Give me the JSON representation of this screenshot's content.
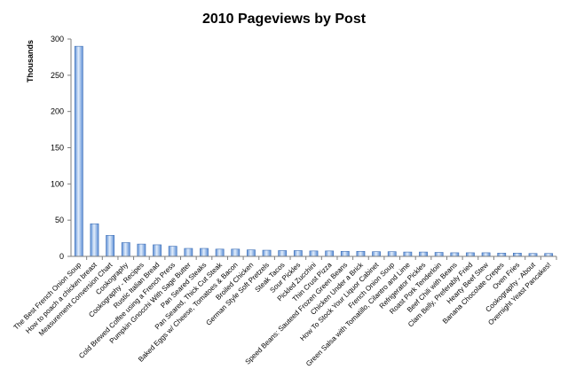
{
  "chart_data": {
    "type": "bar",
    "title": "2010 Pageviews by Post",
    "xlabel": "",
    "ylabel": "Thousands",
    "ylim": [
      0,
      300
    ],
    "yticks": [
      "0",
      "50",
      "100",
      "150",
      "200",
      "250",
      "300"
    ],
    "grid": false,
    "legend": "none",
    "bar_color": "#5b8ed6",
    "bar_highlight": "#e3eefb",
    "categories": [
      "The Best French Onion Soup",
      "How to poach a chicken breast",
      "Measurement Conversion Chart",
      "Cookography",
      "Cookography - Recipes",
      "Rustic Italian Bread",
      "Cold Brewed Coffee using a French Press",
      "Pumpkin Gnocchi With Sage Butter",
      "Pan Seared Steaks",
      "Pan Seared, Thick Cut Steak",
      "Baked Eggs w/ Cheese, Tomatoes & Bacon",
      "Broiled Chicken",
      "German Style Soft Pretzels",
      "Steak Tacos",
      "Sour Pickles",
      "Pickled Zucchini",
      "Thin Crust Pizza",
      "Speed Beans: Sauteed Frozen Green Beans",
      "Chicken Under a Brick",
      "How To Stock Your Liquor Cabinet",
      "French Onion Soup",
      "Green Salsa with Tomatillo, Cilantro and Lime",
      "Refrigerator Pickles",
      "Roast Pork Tenderloin",
      "Beef Chili with Beans",
      "Clam Belly, Preferably Fried",
      "Hearty Beef Stew",
      "Banana Chocolate Crepes",
      "Oven Fries",
      "Cookography - About",
      "Overnight Yeast Pancakes!"
    ],
    "values": [
      290,
      45,
      29,
      19,
      17,
      16,
      14,
      11,
      11,
      10,
      10,
      9,
      8.5,
      8,
      8,
      7.5,
      7.5,
      7,
      7,
      6.5,
      6.5,
      6,
      6,
      5.5,
      5,
      5,
      5,
      4.5,
      4.5,
      4,
      4
    ]
  }
}
